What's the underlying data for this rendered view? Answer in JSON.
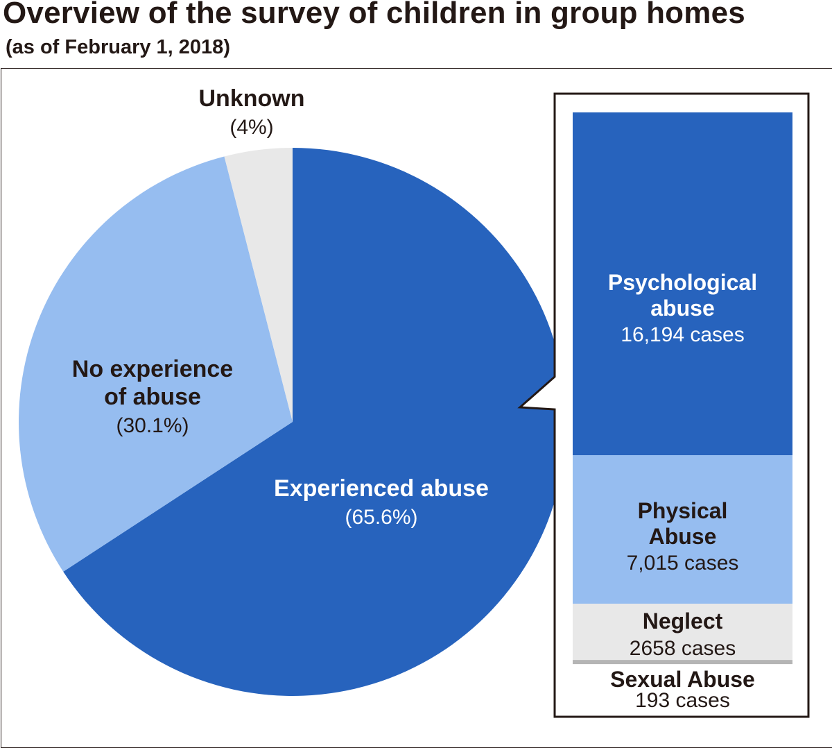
{
  "title": "Overview of the survey of children in group homes",
  "subtitle": "(as of February 1, 2018)",
  "chart_data": [
    {
      "type": "pie",
      "slices": [
        {
          "label_lines": [
            "Experienced abuse"
          ],
          "value_text": "(65.6%)",
          "value": 65.6,
          "color": "#2763bd",
          "text_color": "#ffffff"
        },
        {
          "label_lines": [
            "No experience",
            "of abuse"
          ],
          "value_text": "(30.1%)",
          "value": 30.1,
          "color": "#96bdf0",
          "text_color": "#231815"
        },
        {
          "label_lines": [
            "Unknown"
          ],
          "value_text": "(4%)",
          "value": 4,
          "color": "#e8e8e8",
          "text_color": "#231815"
        }
      ]
    },
    {
      "type": "bar",
      "stacked": true,
      "segments": [
        {
          "label_lines": [
            "Psychological",
            "abuse"
          ],
          "value_text": "16,194 cases",
          "value": 16194,
          "color": "#2763bd",
          "text_color": "#ffffff"
        },
        {
          "label_lines": [
            "Physical",
            "Abuse"
          ],
          "value_text": "7,015 cases",
          "value": 7015,
          "color": "#96bdf0",
          "text_color": "#231815"
        },
        {
          "label_lines": [
            "Neglect"
          ],
          "value_text": "2658 cases",
          "value": 2658,
          "color": "#e8e8e8",
          "text_color": "#231815"
        },
        {
          "label_lines": [
            "Sexual Abuse"
          ],
          "value_text": "193 cases",
          "value": 193,
          "color": "#b5b5b5",
          "text_color": "#231815"
        }
      ]
    }
  ]
}
